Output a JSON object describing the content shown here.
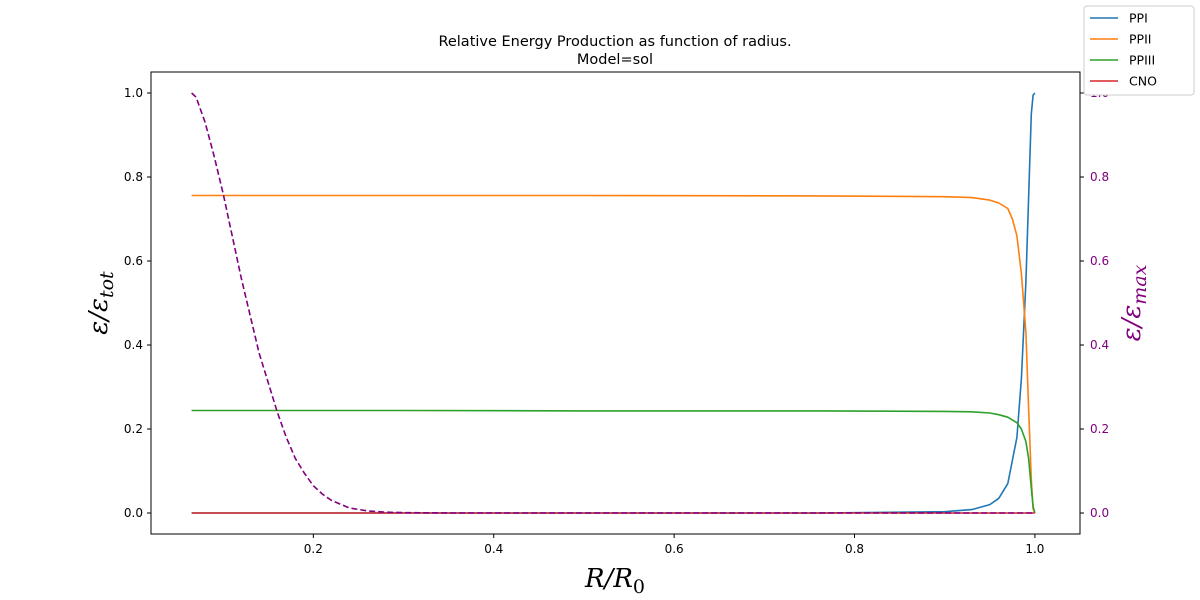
{
  "chart_data": {
    "type": "line",
    "title": "Relative Energy Production as function of radius.",
    "subtitle": "Model=sol",
    "xlabel": "R/R0",
    "ylabel": "ε/εtot",
    "y2label": "ε/εmax",
    "xlim": [
      0.02,
      1.05
    ],
    "ylim": [
      -0.05,
      1.05
    ],
    "y2lim": [
      -0.05,
      1.05
    ],
    "xticks": [
      "0.2",
      "0.4",
      "0.6",
      "0.8",
      "1.0"
    ],
    "yticks": [
      "0.0",
      "0.2",
      "0.4",
      "0.6",
      "0.8",
      "1.0"
    ],
    "y2ticks": [
      "0.0",
      "0.2",
      "0.4",
      "0.6",
      "0.8",
      "1.0"
    ],
    "grid": false,
    "legend_position": "top-right outside",
    "series": [
      {
        "name": "PPI",
        "color": "#1f77b4",
        "axis": "left",
        "style": "solid",
        "x": [
          0.065,
          0.5,
          0.76,
          0.9,
          0.93,
          0.95,
          0.96,
          0.97,
          0.98,
          0.985,
          0.99,
          0.993,
          0.996,
          0.998,
          1.0
        ],
        "y": [
          0.0,
          0.0,
          0.0,
          0.003,
          0.008,
          0.02,
          0.035,
          0.07,
          0.18,
          0.32,
          0.55,
          0.75,
          0.95,
          0.995,
          1.0
        ]
      },
      {
        "name": "PPII",
        "color": "#ff7f0e",
        "axis": "left",
        "style": "solid",
        "x": [
          0.065,
          0.3,
          0.5,
          0.76,
          0.9,
          0.93,
          0.95,
          0.96,
          0.97,
          0.975,
          0.98,
          0.985,
          0.99,
          0.993,
          0.996,
          0.998,
          1.0
        ],
        "y": [
          0.756,
          0.756,
          0.756,
          0.755,
          0.753,
          0.751,
          0.745,
          0.738,
          0.725,
          0.7,
          0.66,
          0.57,
          0.43,
          0.25,
          0.08,
          0.01,
          0.0
        ]
      },
      {
        "name": "PPIII",
        "color": "#2ca02c",
        "axis": "left",
        "style": "solid",
        "x": [
          0.065,
          0.3,
          0.5,
          0.76,
          0.9,
          0.93,
          0.95,
          0.96,
          0.97,
          0.98,
          0.985,
          0.99,
          0.993,
          0.996,
          0.998,
          1.0
        ],
        "y": [
          0.244,
          0.244,
          0.243,
          0.243,
          0.242,
          0.241,
          0.238,
          0.234,
          0.228,
          0.215,
          0.2,
          0.17,
          0.13,
          0.06,
          0.015,
          0.0
        ]
      },
      {
        "name": "CNO",
        "color": "#d62728",
        "axis": "left",
        "style": "solid",
        "x": [
          0.065,
          1.0
        ],
        "y": [
          0.0,
          0.0
        ]
      },
      {
        "name": "",
        "color": "#800080",
        "axis": "right",
        "style": "dashed",
        "x": [
          0.065,
          0.07,
          0.08,
          0.09,
          0.1,
          0.11,
          0.12,
          0.13,
          0.14,
          0.15,
          0.16,
          0.17,
          0.18,
          0.19,
          0.2,
          0.21,
          0.22,
          0.24,
          0.26,
          0.28,
          0.3,
          0.35,
          0.4,
          0.5,
          0.76,
          1.0
        ],
        "y": [
          1.0,
          0.99,
          0.93,
          0.85,
          0.76,
          0.66,
          0.56,
          0.47,
          0.38,
          0.31,
          0.24,
          0.18,
          0.13,
          0.095,
          0.065,
          0.045,
          0.03,
          0.012,
          0.005,
          0.002,
          0.001,
          0.0,
          0.0,
          0.0,
          0.0,
          0.0
        ]
      }
    ]
  }
}
